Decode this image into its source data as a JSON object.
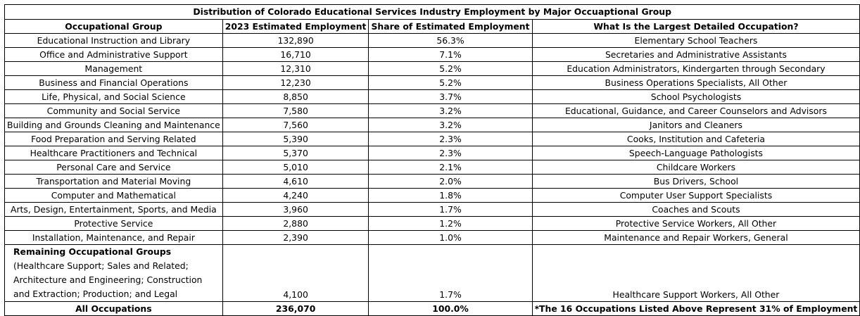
{
  "title": "Distribution of Colorado Educational Services Industry Employment by Major Occuaptional Group",
  "headers": {
    "group": "Occupational Group",
    "employment": "2023 Estimated Employment",
    "share": "Share of Estimated Employment",
    "largest": "What Is the Largest Detailed Occupation?"
  },
  "rows": [
    {
      "group": "Educational Instruction and Library",
      "employment": "132,890",
      "share": "56.3%",
      "largest": "Elementary School Teachers"
    },
    {
      "group": "Office and Administrative Support",
      "employment": "16,710",
      "share": "7.1%",
      "largest": "Secretaries and Administrative Assistants"
    },
    {
      "group": "Management",
      "employment": "12,310",
      "share": "5.2%",
      "largest": "Education Administrators, Kindergarten through Secondary"
    },
    {
      "group": "Business and Financial Operations",
      "employment": "12,230",
      "share": "5.2%",
      "largest": "Business Operations Specialists, All Other"
    },
    {
      "group": "Life, Physical, and Social Science",
      "employment": "8,850",
      "share": "3.7%",
      "largest": "School Psychologists"
    },
    {
      "group": "Community and Social Service",
      "employment": "7,580",
      "share": "3.2%",
      "largest": "Educational, Guidance, and Career Counselors and Advisors"
    },
    {
      "group": "Building and Grounds Cleaning and Maintenance",
      "employment": "7,560",
      "share": "3.2%",
      "largest": "Janitors and Cleaners"
    },
    {
      "group": "Food Preparation and Serving Related",
      "employment": "5,390",
      "share": "2.3%",
      "largest": "Cooks, Institution and Cafeteria"
    },
    {
      "group": "Healthcare Practitioners and Technical",
      "employment": "5,370",
      "share": "2.3%",
      "largest": "Speech-Language Pathologists"
    },
    {
      "group": "Personal Care and Service",
      "employment": "5,010",
      "share": "2.1%",
      "largest": "Childcare Workers"
    },
    {
      "group": "Transportation and Material Moving",
      "employment": "4,610",
      "share": "2.0%",
      "largest": "Bus Drivers, School"
    },
    {
      "group": "Computer and Mathematical",
      "employment": "4,240",
      "share": "1.8%",
      "largest": "Computer User Support Specialists"
    },
    {
      "group": "Arts, Design, Entertainment, Sports, and Media",
      "employment": "3,960",
      "share": "1.7%",
      "largest": "Coaches and Scouts"
    },
    {
      "group": "Protective Service",
      "employment": "2,880",
      "share": "1.2%",
      "largest": "Protective Service Workers, All Other"
    },
    {
      "group": "Installation, Maintenance, and Repair",
      "employment": "2,390",
      "share": "1.0%",
      "largest": "Maintenance and Repair Workers, General"
    }
  ],
  "remaining": {
    "label_bold": "Remaining Occupational Groups",
    "label_rest": " (Healthcare Support; Sales and Related; Architecture and Engineering; Construction and Extraction; Production; and Legal",
    "employment": "4,100",
    "share": "1.7%",
    "largest": "Healthcare Support Workers, All Other"
  },
  "total": {
    "group": "All Occupations",
    "employment": "236,070",
    "share": "100.0%",
    "note": "*The 16 Occupations Listed Above Represent 31% of Employment"
  }
}
